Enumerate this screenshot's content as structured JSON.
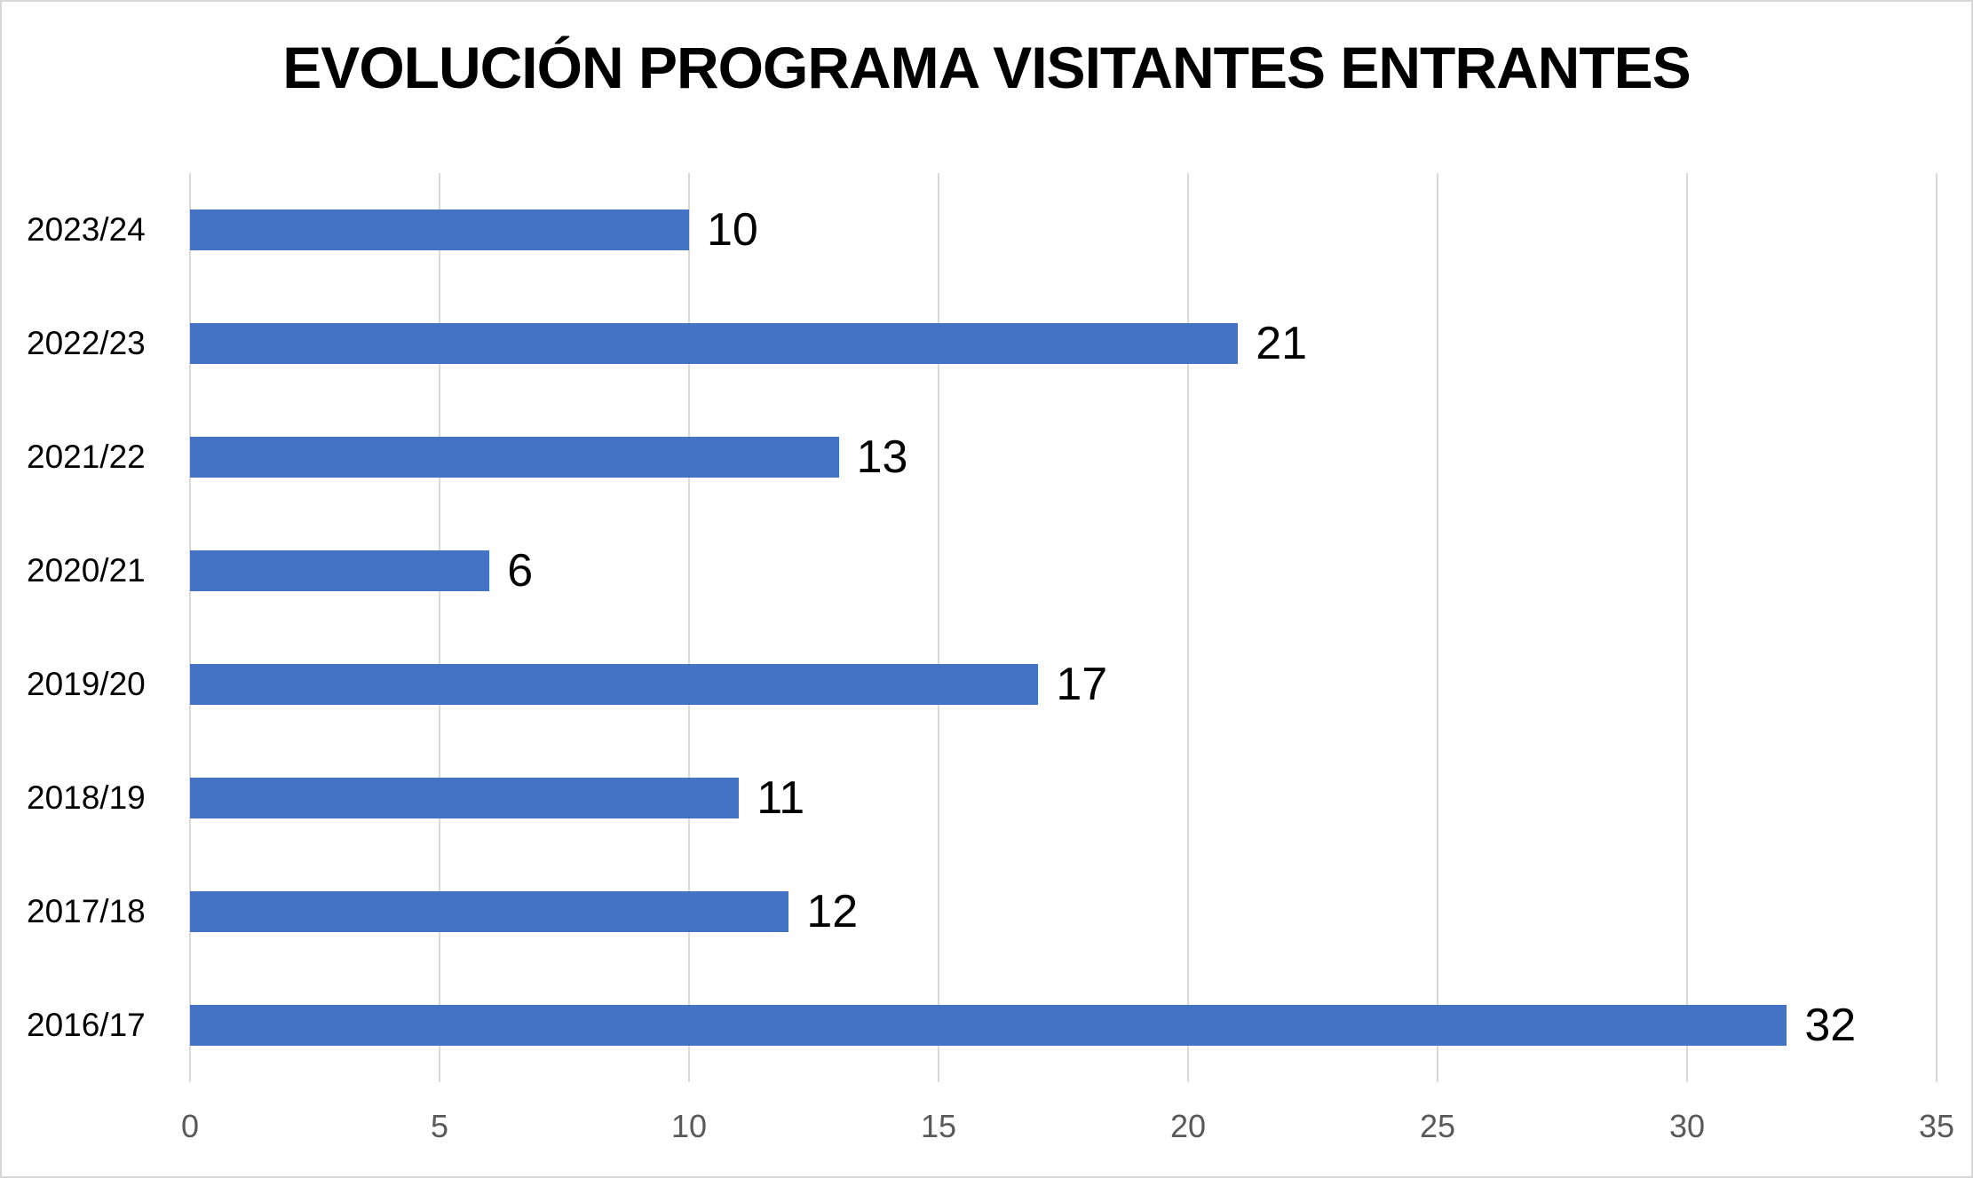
{
  "chart_data": {
    "type": "bar",
    "orientation": "horizontal",
    "title": "EVOLUCIÓN PROGRAMA VISITANTES ENTRANTES",
    "categories": [
      "2023/24",
      "2022/23",
      "2021/22",
      "2020/21",
      "2019/20",
      "2018/19",
      "2017/18",
      "2016/17"
    ],
    "values": [
      10,
      21,
      13,
      6,
      17,
      11,
      12,
      32
    ],
    "data_labels": [
      "10",
      "21",
      "13",
      "6",
      "17",
      "11",
      "12",
      "32"
    ],
    "xticks": [
      "0",
      "5",
      "10",
      "15",
      "20",
      "25",
      "30",
      "35"
    ],
    "xlim": [
      0,
      35
    ],
    "xlabel": "",
    "ylabel": "",
    "grid": true,
    "legend": false,
    "colors": {
      "bar": "#4472c4",
      "gridline": "#d9d9d9",
      "tick_label": "#595959",
      "data_label": "#000000",
      "title": "#000000",
      "background": "#ffffff",
      "border": "#d7d7d7"
    }
  }
}
